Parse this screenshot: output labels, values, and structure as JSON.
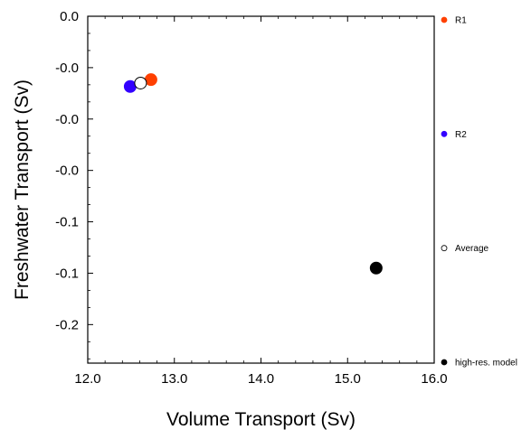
{
  "chart_data": {
    "type": "scatter",
    "xlabel": "Volume Transport (Sv)",
    "ylabel": "Freshwater Transport (Sv)",
    "xlim": [
      12.0,
      16.0
    ],
    "x_ticks": [
      "12.0",
      "13.0",
      "14.0",
      "15.0",
      "16.0"
    ],
    "y_ticks": [
      "0.0",
      "-0.0",
      "-0.0",
      "-0.0",
      "-0.1",
      "-0.1",
      "-0.2"
    ],
    "grid": false,
    "legend_placement": "right",
    "series": [
      {
        "name": "R1",
        "x": [
          12.73
        ],
        "y": [
          -0.037
        ],
        "color": "#ff4000",
        "fill": true
      },
      {
        "name": "R2",
        "x": [
          12.49
        ],
        "y": [
          -0.041
        ],
        "color": "#3300ff",
        "fill": true
      },
      {
        "name": "Average",
        "x": [
          12.61
        ],
        "y": [
          -0.039
        ],
        "color": "#000000",
        "fill": false
      },
      {
        "name": "high-res. model",
        "x": [
          15.33
        ],
        "y": [
          -0.147
        ],
        "color": "#000000",
        "fill": true
      }
    ]
  }
}
